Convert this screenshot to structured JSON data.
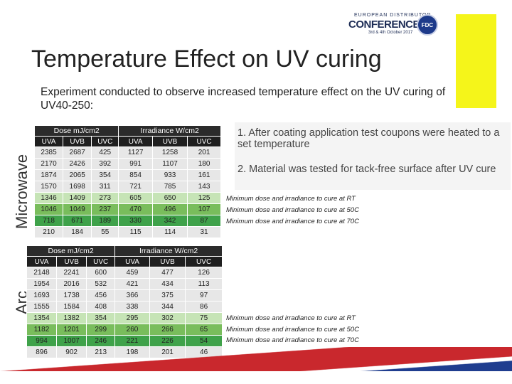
{
  "header": {
    "logo_line1": "EUROPEAN DISTRIBUTOR",
    "logo_line2": "CONFERENCE",
    "logo_line3": "3rd & 4th October 2017",
    "logo_badge": "FDC",
    "title": "Temperature Effect on UV curing",
    "subtitle": "Experiment conducted to observe increased temperature effect on the UV curing of UV40-250:"
  },
  "colors": {
    "accent_yellow": "#f5f51a",
    "row_rt": "#c6e4b6",
    "row_50": "#79bd5c",
    "row_70": "#3fa24a",
    "flag_red": "#c9282d",
    "flag_blue": "#1f3d8f"
  },
  "side_labels": {
    "microwave": "Microwave",
    "arc": "Arc"
  },
  "notes": {
    "note1": "1. After coating application test coupons were heated to a set temperature",
    "note2": "2. Material was tested for tack-free surface after UV cure"
  },
  "tables": {
    "microwave": {
      "group_headers": [
        "Dose mJ/cm2",
        "Irradiance W/cm2"
      ],
      "columns": [
        "UVA",
        "UVB",
        "UVC",
        "UVA",
        "UVB",
        "UVC"
      ],
      "rows": [
        [
          "2385",
          "2687",
          "425",
          "1127",
          "1258",
          "201"
        ],
        [
          "2170",
          "2426",
          "392",
          "991",
          "1107",
          "180"
        ],
        [
          "1874",
          "2065",
          "354",
          "854",
          "933",
          "161"
        ],
        [
          "1570",
          "1698",
          "311",
          "721",
          "785",
          "143"
        ],
        [
          "1346",
          "1409",
          "273",
          "605",
          "650",
          "125"
        ],
        [
          "1046",
          "1049",
          "237",
          "470",
          "496",
          "107"
        ],
        [
          "718",
          "671",
          "189",
          "330",
          "342",
          "87"
        ],
        [
          "210",
          "184",
          "55",
          "115",
          "114",
          "31"
        ]
      ],
      "notes": [
        "Minimum dose and irradiance to cure at RT",
        "Minimum dose and irradiance to cure at 50C",
        "Minimum dose and irradiance to cure at 70C"
      ]
    },
    "arc": {
      "group_headers": [
        "Dose mJ/cm2",
        "Irradiance W/cm2"
      ],
      "columns": [
        "UVA",
        "UVB",
        "UVC",
        "UVA",
        "UVB",
        "UVC"
      ],
      "rows": [
        [
          "2148",
          "2241",
          "600",
          "459",
          "477",
          "126"
        ],
        [
          "1954",
          "2016",
          "532",
          "421",
          "434",
          "113"
        ],
        [
          "1693",
          "1738",
          "456",
          "366",
          "375",
          "97"
        ],
        [
          "1555",
          "1584",
          "408",
          "338",
          "344",
          "86"
        ],
        [
          "1354",
          "1382",
          "354",
          "295",
          "302",
          "75"
        ],
        [
          "1182",
          "1201",
          "299",
          "260",
          "266",
          "65"
        ],
        [
          "994",
          "1007",
          "246",
          "221",
          "226",
          "54"
        ],
        [
          "896",
          "902",
          "213",
          "198",
          "201",
          "46"
        ]
      ],
      "notes": [
        "Minimum dose and irradiance to cure at RT",
        "Minimum dose and irradiance to cure at 50C",
        "Minimum dose and irradiance to cure at 70C"
      ]
    }
  }
}
